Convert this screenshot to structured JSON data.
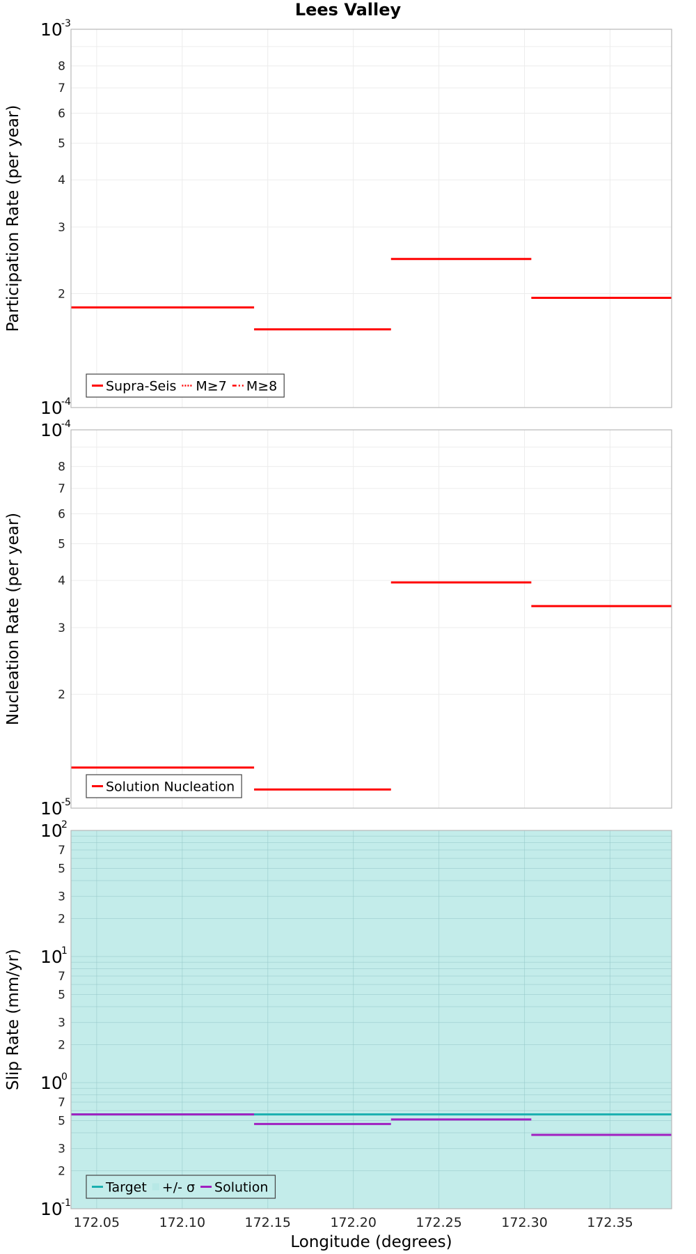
{
  "chart_data": [
    {
      "type": "line",
      "title": "Lees Valley",
      "ylabel": "Participation Rate (per year)",
      "xlabel": "",
      "xlim": [
        172.035,
        172.386
      ],
      "ylim": [
        0.0001,
        0.001
      ],
      "yscale": "log",
      "series": [
        {
          "name": "Supra-Seis",
          "color": "#ff0000",
          "segments": [
            {
              "x": [
                172.035,
                172.142
              ],
              "y": 0.000184
            },
            {
              "x": [
                172.142,
                172.222
              ],
              "y": 0.000161
            },
            {
              "x": [
                172.222,
                172.304
              ],
              "y": 0.000247
            },
            {
              "x": [
                172.304,
                172.386
              ],
              "y": 0.000195
            }
          ]
        }
      ],
      "legend": [
        "Supra-Seis",
        "M≥7",
        "M≥8"
      ],
      "legend_position": "bottom-left",
      "y_ticks": {
        "major": [
          {
            "base": "10",
            "exp": "-3"
          },
          {
            "base": "10",
            "exp": "-4"
          }
        ],
        "minor": [
          "8",
          "7",
          "6",
          "5",
          "4",
          "3",
          "2"
        ]
      }
    },
    {
      "type": "line",
      "ylabel": "Nucleation Rate (per year)",
      "xlabel": "",
      "xlim": [
        172.035,
        172.386
      ],
      "ylim": [
        1e-05,
        0.0001
      ],
      "yscale": "log",
      "series": [
        {
          "name": "Solution Nucleation",
          "color": "#ff0000",
          "segments": [
            {
              "x": [
                172.035,
                172.142
              ],
              "y": 1.28e-05
            },
            {
              "x": [
                172.142,
                172.222
              ],
              "y": 1.12e-05
            },
            {
              "x": [
                172.222,
                172.304
              ],
              "y": 3.95e-05
            },
            {
              "x": [
                172.304,
                172.386
              ],
              "y": 3.42e-05
            }
          ]
        }
      ],
      "legend": [
        "Solution Nucleation"
      ],
      "legend_position": "bottom-left",
      "y_ticks": {
        "major": [
          {
            "base": "10",
            "exp": "-4"
          },
          {
            "base": "10",
            "exp": "-5"
          }
        ],
        "minor": [
          "8",
          "7",
          "6",
          "5",
          "4",
          "3",
          "2"
        ]
      }
    },
    {
      "type": "area",
      "ylabel": "Slip Rate (mm/yr)",
      "xlabel": "Longitude (degrees)",
      "xlim": [
        172.035,
        172.386
      ],
      "ylim": [
        0.1,
        100
      ],
      "yscale": "log",
      "x_ticks": [
        "172.05",
        "172.10",
        "172.15",
        "172.20",
        "172.25",
        "172.30",
        "172.35"
      ],
      "band": {
        "name": "+/- σ",
        "color": "#c3ecea",
        "low": 0.1,
        "high": 100
      },
      "series": [
        {
          "name": "Target",
          "color": "#1aafaf",
          "segments": [
            {
              "x": [
                172.035,
                172.386
              ],
              "y": 0.56
            }
          ]
        },
        {
          "name": "Solution",
          "color": "#a020c0",
          "segments": [
            {
              "x": [
                172.035,
                172.142
              ],
              "y": 0.56
            },
            {
              "x": [
                172.142,
                172.222
              ],
              "y": 0.47
            },
            {
              "x": [
                172.222,
                172.304
              ],
              "y": 0.51
            },
            {
              "x": [
                172.304,
                172.386
              ],
              "y": 0.385
            }
          ]
        }
      ],
      "legend": [
        "Target",
        "+/- σ",
        "Solution"
      ],
      "legend_position": "bottom-left",
      "y_ticks": {
        "major": [
          {
            "base": "10",
            "exp": "2"
          },
          {
            "base": "10",
            "exp": "1"
          },
          {
            "base": "10",
            "exp": "0"
          },
          {
            "base": "10",
            "exp": "-1"
          }
        ],
        "minor_labels": [
          "7",
          "5",
          "3",
          "2"
        ]
      }
    }
  ]
}
